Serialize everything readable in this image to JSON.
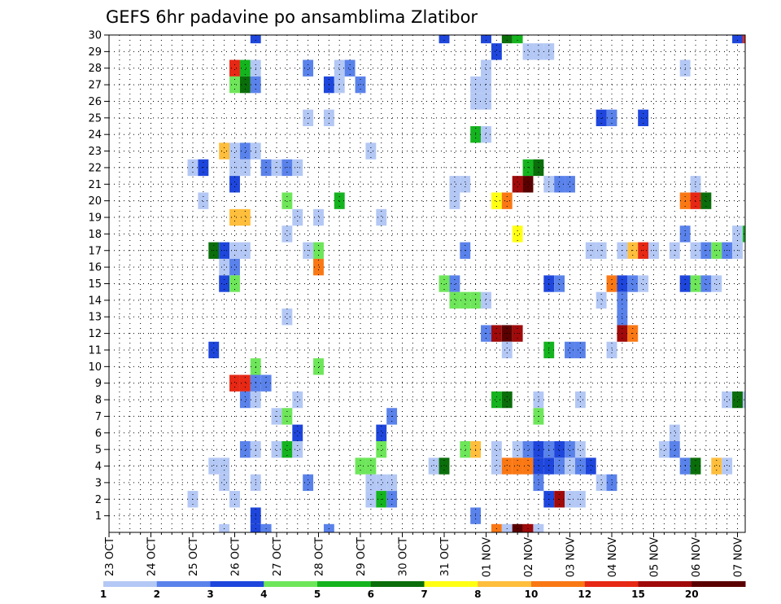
{
  "chart_data": {
    "type": "heatmap",
    "title": "GEFS 6hr padavine po ansamblima Zlatibor",
    "xlabel": "",
    "ylabel": "",
    "x_tick_labels": [
      "23 OCT",
      "24 OCT",
      "25 OCT",
      "26 OCT",
      "27 OCT",
      "28 OCT",
      "29 OCT",
      "30 OCT",
      "31 OCT",
      "01 NOV",
      "02 NOV",
      "03 NOV",
      "04 NOV",
      "05 NOV",
      "06 NOV",
      "07 NOV"
    ],
    "y_ticks": [
      1,
      2,
      3,
      4,
      5,
      6,
      7,
      8,
      9,
      10,
      11,
      12,
      13,
      14,
      15,
      16,
      17,
      18,
      19,
      20,
      21,
      22,
      23,
      24,
      25,
      26,
      27,
      28,
      29,
      30
    ],
    "x_range_days": [
      0,
      15.25
    ],
    "y_range": [
      0,
      30
    ],
    "time_step_hours": 6,
    "grid": true,
    "colorbar": {
      "placement": "bottom",
      "labels": [
        "1",
        "2",
        "3",
        "4",
        "5",
        "6",
        "7",
        "8",
        "10",
        "12",
        "15",
        "20"
      ],
      "colors": [
        "#b4c8f5",
        "#5a82eb",
        "#1e46dc",
        "#6ee65a",
        "#14b41e",
        "#0a6e0a",
        "#ffff14",
        "#ffbe3c",
        "#fa7814",
        "#e62814",
        "#a00a0a",
        "#5a0000"
      ]
    },
    "cells": [
      [
        30,
        3.5,
        3
      ],
      [
        30,
        8.0,
        3
      ],
      [
        30,
        9.0,
        3
      ],
      [
        30,
        9.5,
        6
      ],
      [
        30,
        9.75,
        5
      ],
      [
        30,
        15.0,
        3
      ],
      [
        30,
        15.25,
        10
      ],
      [
        29,
        9.25,
        3
      ],
      [
        29,
        10.0,
        1
      ],
      [
        29,
        10.25,
        1
      ],
      [
        29,
        10.5,
        1
      ],
      [
        28,
        3.0,
        10
      ],
      [
        28,
        3.25,
        5
      ],
      [
        28,
        3.5,
        1
      ],
      [
        28,
        4.75,
        2
      ],
      [
        28,
        5.5,
        1
      ],
      [
        28,
        5.75,
        2
      ],
      [
        28,
        9.0,
        1
      ],
      [
        28,
        13.75,
        1
      ],
      [
        27,
        3.0,
        4
      ],
      [
        27,
        3.25,
        6
      ],
      [
        27,
        3.5,
        2
      ],
      [
        27,
        5.25,
        3
      ],
      [
        27,
        5.5,
        1
      ],
      [
        27,
        6.0,
        2
      ],
      [
        27,
        8.75,
        1
      ],
      [
        27,
        9.0,
        1
      ],
      [
        26,
        8.75,
        1
      ],
      [
        26,
        9.0,
        1
      ],
      [
        25,
        4.75,
        1
      ],
      [
        25,
        5.25,
        1
      ],
      [
        25,
        11.75,
        3
      ],
      [
        25,
        12.0,
        2
      ],
      [
        25,
        12.75,
        3
      ],
      [
        24,
        8.75,
        5
      ],
      [
        24,
        9.0,
        1
      ],
      [
        23,
        2.75,
        8
      ],
      [
        23,
        3.0,
        1
      ],
      [
        23,
        3.25,
        2
      ],
      [
        23,
        3.5,
        1
      ],
      [
        23,
        6.25,
        1
      ],
      [
        22,
        2.0,
        1
      ],
      [
        22,
        2.25,
        3
      ],
      [
        22,
        3.0,
        1
      ],
      [
        22,
        3.25,
        1
      ],
      [
        22,
        3.75,
        2
      ],
      [
        22,
        4.0,
        1
      ],
      [
        22,
        4.25,
        2
      ],
      [
        22,
        4.5,
        1
      ],
      [
        22,
        10.0,
        5
      ],
      [
        22,
        10.25,
        6
      ],
      [
        21,
        3.0,
        3
      ],
      [
        21,
        8.25,
        1
      ],
      [
        21,
        8.5,
        1
      ],
      [
        21,
        9.75,
        11
      ],
      [
        21,
        10.0,
        12
      ],
      [
        21,
        10.5,
        1
      ],
      [
        21,
        10.75,
        2
      ],
      [
        21,
        11.0,
        2
      ],
      [
        21,
        14.0,
        1
      ],
      [
        20,
        2.25,
        1
      ],
      [
        20,
        4.25,
        4
      ],
      [
        20,
        5.5,
        5
      ],
      [
        20,
        8.25,
        1
      ],
      [
        20,
        9.25,
        7
      ],
      [
        20,
        9.5,
        9
      ],
      [
        20,
        13.75,
        9
      ],
      [
        20,
        14.0,
        10
      ],
      [
        20,
        14.25,
        6
      ],
      [
        19,
        3.0,
        8
      ],
      [
        19,
        3.25,
        8
      ],
      [
        19,
        4.5,
        1
      ],
      [
        19,
        5.0,
        1
      ],
      [
        19,
        6.5,
        1
      ],
      [
        18,
        4.25,
        1
      ],
      [
        18,
        9.75,
        7
      ],
      [
        18,
        13.75,
        2
      ],
      [
        18,
        15.0,
        1
      ],
      [
        18,
        15.25,
        5
      ],
      [
        17,
        2.5,
        6
      ],
      [
        17,
        2.75,
        3
      ],
      [
        17,
        3.0,
        1
      ],
      [
        17,
        3.25,
        1
      ],
      [
        17,
        4.75,
        1
      ],
      [
        17,
        5.0,
        4
      ],
      [
        17,
        8.5,
        2
      ],
      [
        17,
        11.5,
        1
      ],
      [
        17,
        11.75,
        1
      ],
      [
        17,
        12.25,
        1
      ],
      [
        17,
        12.5,
        8
      ],
      [
        17,
        12.75,
        10
      ],
      [
        17,
        13.0,
        1
      ],
      [
        17,
        13.5,
        1
      ],
      [
        17,
        14.0,
        1
      ],
      [
        17,
        14.25,
        2
      ],
      [
        17,
        14.5,
        4
      ],
      [
        17,
        14.75,
        2
      ],
      [
        17,
        15.0,
        1
      ],
      [
        16,
        2.75,
        1
      ],
      [
        16,
        3.0,
        2
      ],
      [
        16,
        5.0,
        9
      ],
      [
        15,
        2.75,
        3
      ],
      [
        15,
        3.0,
        4
      ],
      [
        15,
        8.0,
        4
      ],
      [
        15,
        8.25,
        2
      ],
      [
        15,
        10.5,
        3
      ],
      [
        15,
        10.75,
        2
      ],
      [
        15,
        12.0,
        9
      ],
      [
        15,
        12.25,
        3
      ],
      [
        15,
        12.5,
        2
      ],
      [
        15,
        12.75,
        1
      ],
      [
        15,
        13.75,
        3
      ],
      [
        15,
        14.0,
        4
      ],
      [
        15,
        14.25,
        2
      ],
      [
        15,
        14.5,
        1
      ],
      [
        14,
        8.25,
        4
      ],
      [
        14,
        8.5,
        4
      ],
      [
        14,
        8.75,
        4
      ],
      [
        14,
        9.0,
        1
      ],
      [
        14,
        11.75,
        1
      ],
      [
        14,
        12.25,
        2
      ],
      [
        13,
        4.25,
        1
      ],
      [
        13,
        12.25,
        2
      ],
      [
        12,
        9.0,
        2
      ],
      [
        12,
        9.25,
        11
      ],
      [
        12,
        9.5,
        12
      ],
      [
        12,
        9.75,
        11
      ],
      [
        12,
        12.25,
        11
      ],
      [
        12,
        12.5,
        9
      ],
      [
        11,
        2.5,
        3
      ],
      [
        11,
        9.5,
        1
      ],
      [
        11,
        10.5,
        5
      ],
      [
        11,
        11.0,
        2
      ],
      [
        11,
        11.25,
        2
      ],
      [
        11,
        12.0,
        1
      ],
      [
        10,
        3.5,
        4
      ],
      [
        10,
        5.0,
        4
      ],
      [
        9,
        3.0,
        10
      ],
      [
        9,
        3.25,
        10
      ],
      [
        9,
        3.5,
        2
      ],
      [
        9,
        3.75,
        2
      ],
      [
        8,
        3.25,
        2
      ],
      [
        8,
        3.5,
        1
      ],
      [
        8,
        4.5,
        1
      ],
      [
        8,
        9.25,
        5
      ],
      [
        8,
        9.5,
        6
      ],
      [
        8,
        10.25,
        1
      ],
      [
        8,
        11.25,
        1
      ],
      [
        8,
        14.75,
        1
      ],
      [
        8,
        15.0,
        6
      ],
      [
        8,
        15.25,
        1
      ],
      [
        7,
        4.0,
        1
      ],
      [
        7,
        4.25,
        4
      ],
      [
        7,
        6.75,
        2
      ],
      [
        7,
        10.25,
        4
      ],
      [
        6,
        4.5,
        3
      ],
      [
        6,
        6.5,
        3
      ],
      [
        6,
        13.5,
        1
      ],
      [
        5,
        3.25,
        2
      ],
      [
        5,
        3.5,
        1
      ],
      [
        5,
        4.0,
        1
      ],
      [
        5,
        4.25,
        5
      ],
      [
        5,
        4.5,
        1
      ],
      [
        5,
        6.5,
        4
      ],
      [
        5,
        8.5,
        4
      ],
      [
        5,
        8.75,
        8
      ],
      [
        5,
        9.25,
        1
      ],
      [
        5,
        9.75,
        1
      ],
      [
        5,
        10.0,
        2
      ],
      [
        5,
        10.25,
        3
      ],
      [
        5,
        10.5,
        2
      ],
      [
        5,
        10.75,
        3
      ],
      [
        5,
        11.0,
        2
      ],
      [
        5,
        11.25,
        1
      ],
      [
        5,
        13.25,
        1
      ],
      [
        5,
        13.5,
        2
      ],
      [
        4,
        2.5,
        1
      ],
      [
        4,
        2.75,
        1
      ],
      [
        4,
        6.0,
        4
      ],
      [
        4,
        6.25,
        4
      ],
      [
        4,
        7.75,
        1
      ],
      [
        4,
        8.0,
        6
      ],
      [
        4,
        9.25,
        1
      ],
      [
        4,
        9.5,
        9
      ],
      [
        4,
        9.75,
        9
      ],
      [
        4,
        10.0,
        9
      ],
      [
        4,
        10.25,
        3
      ],
      [
        4,
        10.5,
        3
      ],
      [
        4,
        10.75,
        2
      ],
      [
        4,
        11.0,
        1
      ],
      [
        4,
        11.25,
        2
      ],
      [
        4,
        11.5,
        3
      ],
      [
        4,
        13.75,
        2
      ],
      [
        4,
        14.0,
        6
      ],
      [
        4,
        14.5,
        8
      ],
      [
        4,
        14.75,
        1
      ],
      [
        3,
        2.75,
        1
      ],
      [
        3,
        3.5,
        1
      ],
      [
        3,
        4.75,
        2
      ],
      [
        3,
        6.25,
        1
      ],
      [
        3,
        6.5,
        1
      ],
      [
        3,
        6.75,
        1
      ],
      [
        3,
        10.25,
        2
      ],
      [
        3,
        11.75,
        1
      ],
      [
        3,
        12.0,
        2
      ],
      [
        2,
        2.0,
        1
      ],
      [
        2,
        3.0,
        1
      ],
      [
        2,
        6.25,
        1
      ],
      [
        2,
        6.5,
        5
      ],
      [
        2,
        6.75,
        2
      ],
      [
        2,
        10.5,
        3
      ],
      [
        2,
        10.75,
        11
      ],
      [
        2,
        11.0,
        1
      ],
      [
        2,
        11.25,
        1
      ],
      [
        1,
        3.5,
        3
      ],
      [
        1,
        8.75,
        2
      ],
      [
        0,
        2.75,
        1
      ],
      [
        0,
        3.5,
        3
      ],
      [
        0,
        3.75,
        2
      ],
      [
        0,
        5.25,
        2
      ],
      [
        0,
        9.25,
        9
      ],
      [
        0,
        9.5,
        1
      ],
      [
        0,
        9.75,
        12
      ],
      [
        0,
        10.0,
        11
      ],
      [
        0,
        10.25,
        1
      ]
    ]
  }
}
